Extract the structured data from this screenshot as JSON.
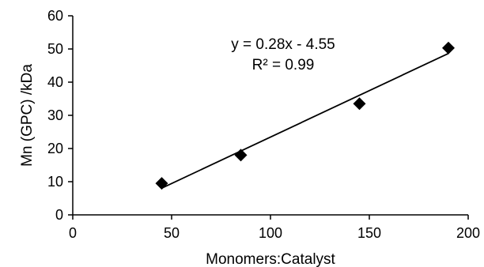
{
  "chart_data": {
    "type": "scatter",
    "title": "",
    "xlabel": "Monomers:Catalyst",
    "ylabel": "Mn (GPC) /kDa",
    "xlim": [
      0,
      200
    ],
    "ylim": [
      0,
      60
    ],
    "x_ticks": [
      "0",
      "50",
      "100",
      "150",
      "200"
    ],
    "y_ticks": [
      "0",
      "10",
      "20",
      "30",
      "40",
      "50",
      "60"
    ],
    "grid": false,
    "legend": "none",
    "marker": "diamond",
    "marker_color": "#000000",
    "series": [
      {
        "x": [
          45,
          85,
          145,
          190
        ],
        "y": [
          9.5,
          18.0,
          33.5,
          50.3
        ]
      }
    ],
    "trendline": {
      "type": "linear",
      "slope": 0.28,
      "intercept": -4.55,
      "x_range": [
        45,
        190
      ],
      "color": "#000000"
    },
    "annotations": {
      "equation": "y = 0.28x - 4.55",
      "r_squared": "R² = 0.99"
    }
  }
}
